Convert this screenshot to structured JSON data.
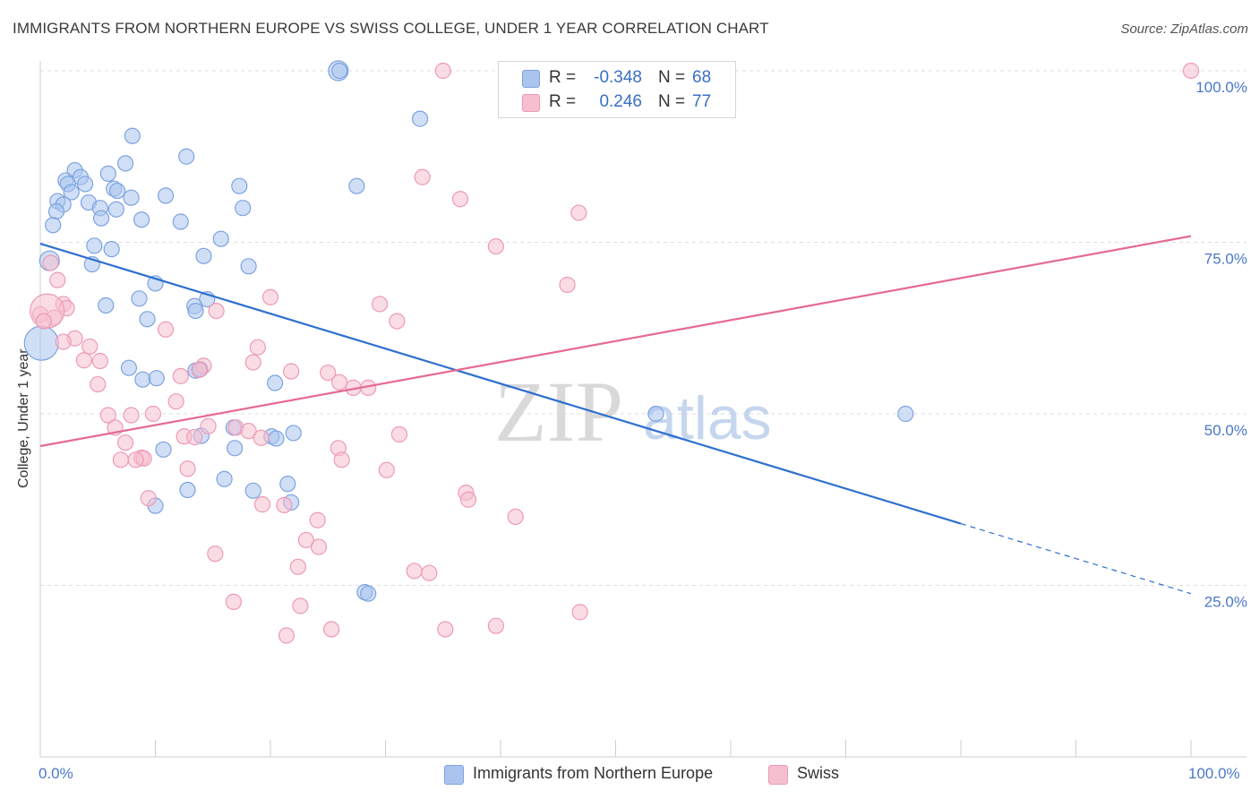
{
  "title": "IMMIGRANTS FROM NORTHERN EUROPE VS SWISS COLLEGE, UNDER 1 YEAR CORRELATION CHART",
  "source": "Source: ZipAtlas.com",
  "watermark": {
    "zip": "ZIP",
    "atlas": "atlas"
  },
  "colors": {
    "blue_fill": "#aac4ee",
    "blue_stroke": "#7da3e0",
    "blue_line": "#2e6fd1",
    "pink_fill": "#f6bfd0",
    "pink_stroke": "#ee9ab4",
    "pink_line": "#e56a93",
    "tick_label": "#4a78c8",
    "grid": "#dedede"
  },
  "stats": [
    {
      "r_label": "R =",
      "r_value": "-0.348",
      "n_label": "N =",
      "n_value": "68",
      "color": "#aac4ee",
      "stroke": "#7da3e0"
    },
    {
      "r_label": "R =",
      "r_value": "0.246",
      "n_label": "N =",
      "n_value": "77",
      "color": "#f6bfd0",
      "stroke": "#ee9ab4"
    }
  ],
  "legend": [
    {
      "label": "Immigrants from Northern Europe",
      "color": "#aac4ee",
      "stroke": "#7da3e0"
    },
    {
      "label": "Swiss",
      "color": "#f6bfd0",
      "stroke": "#ee9ab4"
    }
  ],
  "chart_data": {
    "type": "scatter",
    "title": "IMMIGRANTS FROM NORTHERN EUROPE VS SWISS COLLEGE, UNDER 1 YEAR CORRELATION CHART",
    "xlabel": "",
    "ylabel": "College, Under 1 year",
    "xlim": [
      0,
      100
    ],
    "ylim": [
      0,
      105
    ],
    "x_tick_labels": [
      "0.0%",
      "100.0%"
    ],
    "y_ticks": [
      25,
      50,
      75,
      100
    ],
    "y_tick_labels": [
      "25.0%",
      "50.0%",
      "75.0%",
      "100.0%"
    ],
    "grid": true,
    "series": [
      {
        "name": "Immigrants from Northern Europe",
        "trend": {
          "x0": 0,
          "y0": 74.8,
          "x1": 80,
          "y1": 34.0,
          "dash_to_x": 100,
          "dash_to_y": 23.8
        },
        "points": [
          [
            25.9,
            100
          ],
          [
            26.0,
            100
          ],
          [
            33.0,
            93
          ],
          [
            8.0,
            90.5
          ],
          [
            12.7,
            87.5
          ],
          [
            7.4,
            86.5
          ],
          [
            3.0,
            85.5
          ],
          [
            5.9,
            85
          ],
          [
            3.5,
            84.5
          ],
          [
            2.2,
            84
          ],
          [
            2.4,
            83.5
          ],
          [
            3.9,
            83.5
          ],
          [
            17.3,
            83.2
          ],
          [
            27.5,
            83.2
          ],
          [
            6.4,
            82.8
          ],
          [
            6.7,
            82.5
          ],
          [
            2.7,
            82.3
          ],
          [
            10.9,
            81.8
          ],
          [
            7.9,
            81.5
          ],
          [
            1.5,
            81
          ],
          [
            2.0,
            80.5
          ],
          [
            4.2,
            80.8
          ],
          [
            5.2,
            80
          ],
          [
            17.6,
            80
          ],
          [
            1.4,
            79.5
          ],
          [
            6.6,
            79.8
          ],
          [
            5.3,
            78.5
          ],
          [
            8.8,
            78.3
          ],
          [
            12.2,
            78
          ],
          [
            1.1,
            77.5
          ],
          [
            15.7,
            75.5
          ],
          [
            4.7,
            74.5
          ],
          [
            6.2,
            74
          ],
          [
            14.2,
            73
          ],
          [
            0.8,
            72.3
          ],
          [
            4.5,
            71.8
          ],
          [
            18.1,
            71.5
          ],
          [
            10.0,
            69
          ],
          [
            8.6,
            66.8
          ],
          [
            14.5,
            66.7
          ],
          [
            5.7,
            65.8
          ],
          [
            13.4,
            65.7
          ],
          [
            13.5,
            65
          ],
          [
            9.3,
            63.8
          ],
          [
            0.1,
            60.3
          ],
          [
            7.7,
            56.7
          ],
          [
            13.5,
            56.3
          ],
          [
            13.9,
            56.5
          ],
          [
            8.9,
            55
          ],
          [
            10.1,
            55.2
          ],
          [
            20.4,
            54.5
          ],
          [
            53.5,
            50
          ],
          [
            75.2,
            50
          ],
          [
            22.0,
            47.2
          ],
          [
            14.0,
            46.8
          ],
          [
            16.8,
            48
          ],
          [
            10.7,
            44.8
          ],
          [
            20.1,
            46.7
          ],
          [
            20.5,
            46.4
          ],
          [
            16.9,
            45
          ],
          [
            12.8,
            38.9
          ],
          [
            16.0,
            40.5
          ],
          [
            18.5,
            38.8
          ],
          [
            21.5,
            39.8
          ],
          [
            21.8,
            37.1
          ],
          [
            10.0,
            36.6
          ],
          [
            28.2,
            24
          ],
          [
            28.5,
            23.8
          ]
        ],
        "point_sizes": {
          "0": "xl",
          "44": "xxl",
          "34": "xl"
        }
      },
      {
        "name": "Swiss",
        "trend": {
          "x0": 0,
          "y0": 45.3,
          "x1": 100,
          "y1": 75.9
        },
        "points": [
          [
            35.0,
            100
          ],
          [
            100.0,
            100
          ],
          [
            33.2,
            84.5
          ],
          [
            36.5,
            81.3
          ],
          [
            46.8,
            79.3
          ],
          [
            39.6,
            74.4
          ],
          [
            45.8,
            68.8
          ],
          [
            0.9,
            72
          ],
          [
            1.5,
            69.5
          ],
          [
            20.0,
            67
          ],
          [
            2.0,
            66
          ],
          [
            29.5,
            66
          ],
          [
            2.3,
            65.4
          ],
          [
            15.3,
            65
          ],
          [
            31.0,
            63.5
          ],
          [
            0.0,
            64.5
          ],
          [
            10.9,
            62.3
          ],
          [
            3.0,
            61
          ],
          [
            2.0,
            60.5
          ],
          [
            4.3,
            59.8
          ],
          [
            18.9,
            59.7
          ],
          [
            3.8,
            57.8
          ],
          [
            5.2,
            57.7
          ],
          [
            18.5,
            57.5
          ],
          [
            14.2,
            57
          ],
          [
            13.8,
            56.4
          ],
          [
            21.8,
            56.2
          ],
          [
            25.0,
            56.0
          ],
          [
            12.2,
            55.5
          ],
          [
            5.0,
            54.3
          ],
          [
            27.2,
            53.8
          ],
          [
            26.0,
            54.6
          ],
          [
            28.5,
            53.8
          ],
          [
            11.8,
            51.8
          ],
          [
            9.8,
            50
          ],
          [
            5.9,
            49.8
          ],
          [
            7.9,
            49.8
          ],
          [
            17.0,
            48
          ],
          [
            12.5,
            46.7
          ],
          [
            6.5,
            48
          ],
          [
            14.6,
            48.2
          ],
          [
            18.1,
            47.5
          ],
          [
            31.2,
            47
          ],
          [
            19.2,
            46.5
          ],
          [
            13.4,
            46.6
          ],
          [
            7.4,
            45.8
          ],
          [
            25.9,
            45
          ],
          [
            8.8,
            43.6
          ],
          [
            9.0,
            43.5
          ],
          [
            7.0,
            43.3
          ],
          [
            8.3,
            43.3
          ],
          [
            26.2,
            43.3
          ],
          [
            12.8,
            42
          ],
          [
            30.1,
            41.8
          ],
          [
            37.0,
            38.5
          ],
          [
            37.2,
            37.5
          ],
          [
            9.4,
            37.7
          ],
          [
            19.3,
            36.8
          ],
          [
            21.2,
            36.7
          ],
          [
            41.3,
            35
          ],
          [
            24.1,
            34.5
          ],
          [
            23.1,
            31.6
          ],
          [
            24.2,
            30.6
          ],
          [
            15.2,
            29.6
          ],
          [
            22.4,
            27.7
          ],
          [
            32.5,
            27.1
          ],
          [
            33.8,
            26.8
          ],
          [
            16.8,
            22.6
          ],
          [
            22.6,
            22.0
          ],
          [
            46.9,
            21.1
          ],
          [
            25.3,
            18.6
          ],
          [
            35.2,
            18.6
          ],
          [
            39.6,
            19.1
          ],
          [
            21.4,
            17.7
          ],
          [
            1.2,
            64
          ],
          [
            0.6,
            65
          ],
          [
            0.3,
            63.5
          ]
        ],
        "point_sizes": {
          "75": "xxl"
        }
      }
    ]
  }
}
